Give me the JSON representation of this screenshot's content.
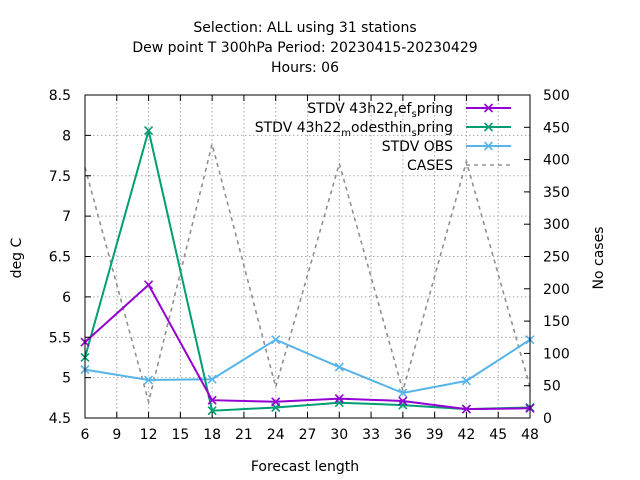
{
  "chart_data": {
    "type": "line",
    "title_lines": [
      "Selection: ALL using    31 stations",
      "Dew point T 300hPa   Period: 20230415-20230429",
      "Hours:  06"
    ],
    "xlabel": "Forecast length",
    "ylabel": "deg C",
    "y2label": "No cases",
    "xlim": [
      6,
      48
    ],
    "ylim": [
      4.5,
      8.5
    ],
    "y2lim": [
      0,
      500
    ],
    "xticks": [
      6,
      9,
      12,
      15,
      18,
      21,
      24,
      27,
      30,
      33,
      36,
      39,
      42,
      45,
      48
    ],
    "yticks": [
      "4.5",
      "5",
      "5.5",
      "6",
      "6.5",
      "7",
      "7.5",
      "8",
      "8.5"
    ],
    "y2ticks": [
      0,
      50,
      100,
      150,
      200,
      250,
      300,
      350,
      400,
      450,
      500
    ],
    "grid": true,
    "legend_position": "top-right",
    "series": [
      {
        "name": "STDV 43h22_ref_spring",
        "label_parts": {
          "a": "STDV 43h22",
          "s1": "r",
          "b": "ef",
          "s2": "s",
          "c": "pring"
        },
        "color": "#9400d3",
        "marker": "x",
        "axis": "y1",
        "x": [
          6,
          12,
          18,
          24,
          30,
          36,
          42,
          48
        ],
        "values": [
          5.44,
          6.15,
          4.72,
          4.7,
          4.74,
          4.71,
          4.61,
          4.62
        ]
      },
      {
        "name": "STDV 43h22_modesthin_spring",
        "label_parts": {
          "a": "STDV 43h22",
          "s1": "m",
          "b": "odesthin",
          "s2": "s",
          "c": "pring"
        },
        "color": "#009e73",
        "marker": "x",
        "axis": "y1",
        "x": [
          6,
          12,
          18,
          24,
          30,
          36,
          42,
          48
        ],
        "values": [
          5.25,
          8.06,
          4.59,
          4.63,
          4.69,
          4.66,
          4.61,
          4.63
        ]
      },
      {
        "name": "STDV OBS",
        "color": "#56b4e9",
        "marker": "x",
        "axis": "y1",
        "x": [
          6,
          12,
          18,
          24,
          30,
          36,
          42,
          48
        ],
        "values": [
          5.1,
          4.97,
          4.98,
          5.47,
          5.13,
          4.81,
          4.96,
          5.47
        ]
      },
      {
        "name": "CASES",
        "color": "#909090",
        "dashed": true,
        "axis": "y2",
        "x": [
          6,
          12,
          18,
          24,
          30,
          36,
          42,
          48
        ],
        "values": [
          388,
          25,
          424,
          48,
          394,
          42,
          397,
          48
        ]
      }
    ]
  }
}
